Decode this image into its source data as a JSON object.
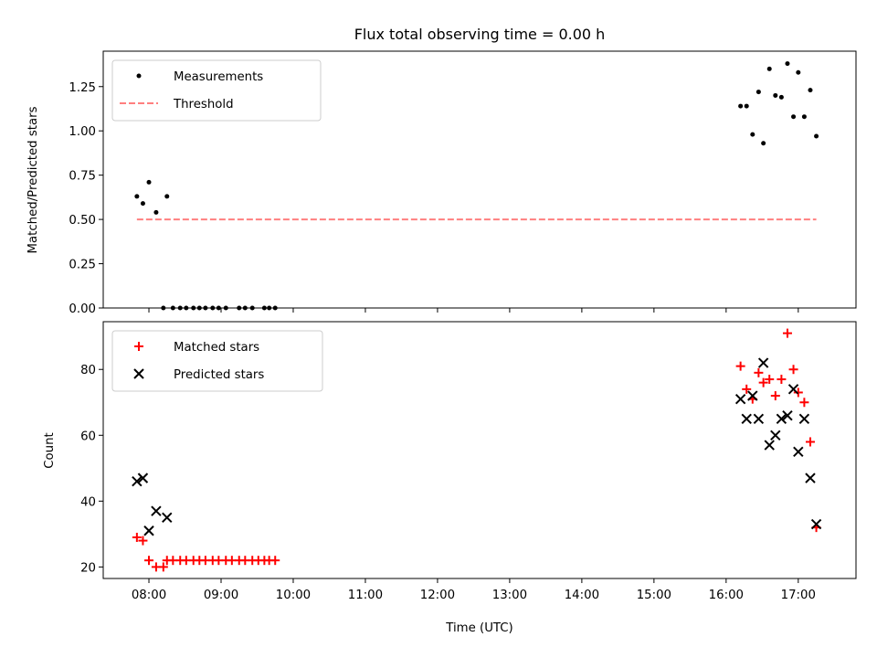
{
  "title": "Flux total observing time = 0.00 h",
  "xlabel": "Time (UTC)",
  "x_ticks": [
    "08:00",
    "09:00",
    "10:00",
    "11:00",
    "12:00",
    "13:00",
    "14:00",
    "15:00",
    "16:00",
    "17:00"
  ],
  "chart_data": [
    {
      "type": "scatter",
      "ylabel": "Matched/Predicted stars",
      "xlim": [
        "07:22",
        "17:48"
      ],
      "ylim": [
        0,
        1.45
      ],
      "y_ticks": [
        "0.00",
        "0.25",
        "0.50",
        "0.75",
        "1.00",
        "1.25"
      ],
      "legend": {
        "placement": "top-left",
        "entries": [
          "Measurements",
          "Threshold"
        ]
      },
      "series": [
        {
          "name": "Measurements",
          "marker": "dot",
          "color": "#000000",
          "points": [
            [
              "07:50",
              0.63
            ],
            [
              "07:55",
              0.59
            ],
            [
              "08:00",
              0.71
            ],
            [
              "08:06",
              0.54
            ],
            [
              "08:15",
              0.63
            ],
            [
              "08:12",
              0.0
            ],
            [
              "08:20",
              0.0
            ],
            [
              "08:26",
              0.0
            ],
            [
              "08:31",
              0.0
            ],
            [
              "08:37",
              0.0
            ],
            [
              "08:42",
              0.0
            ],
            [
              "08:47",
              0.0
            ],
            [
              "08:53",
              0.0
            ],
            [
              "08:58",
              0.0
            ],
            [
              "09:04",
              0.0
            ],
            [
              "09:15",
              0.0
            ],
            [
              "09:20",
              0.0
            ],
            [
              "09:26",
              0.0
            ],
            [
              "09:36",
              0.0
            ],
            [
              "09:40",
              0.0
            ],
            [
              "09:45",
              0.0
            ],
            [
              "16:12",
              1.14
            ],
            [
              "16:17",
              1.14
            ],
            [
              "16:22",
              0.98
            ],
            [
              "16:27",
              1.22
            ],
            [
              "16:31",
              0.93
            ],
            [
              "16:36",
              1.35
            ],
            [
              "16:41",
              1.2
            ],
            [
              "16:46",
              1.19
            ],
            [
              "16:51",
              1.38
            ],
            [
              "16:56",
              1.08
            ],
            [
              "17:00",
              1.33
            ],
            [
              "17:05",
              1.08
            ],
            [
              "17:10",
              1.23
            ],
            [
              "17:15",
              0.97
            ]
          ]
        },
        {
          "name": "Threshold",
          "style": "dashed",
          "color": "#ff7f7f",
          "points": [
            [
              "07:50",
              0.5
            ],
            [
              "17:15",
              0.5
            ]
          ]
        }
      ]
    },
    {
      "type": "scatter",
      "ylabel": "Count",
      "xlim": [
        "07:22",
        "17:48"
      ],
      "ylim": [
        16.5,
        94.5
      ],
      "y_ticks": [
        "20",
        "40",
        "60",
        "80"
      ],
      "legend": {
        "placement": "top-left",
        "entries": [
          "Matched stars",
          "Predicted stars"
        ]
      },
      "series": [
        {
          "name": "Matched stars",
          "marker": "plus",
          "color": "#ff0000",
          "points": [
            [
              "07:50",
              29
            ],
            [
              "07:55",
              28
            ],
            [
              "08:00",
              22
            ],
            [
              "08:06",
              20
            ],
            [
              "08:12",
              20
            ],
            [
              "08:15",
              22
            ],
            [
              "08:20",
              22
            ],
            [
              "08:26",
              22
            ],
            [
              "08:31",
              22
            ],
            [
              "08:37",
              22
            ],
            [
              "08:42",
              22
            ],
            [
              "08:47",
              22
            ],
            [
              "08:53",
              22
            ],
            [
              "08:58",
              22
            ],
            [
              "09:04",
              22
            ],
            [
              "09:09",
              22
            ],
            [
              "09:15",
              22
            ],
            [
              "09:20",
              22
            ],
            [
              "09:26",
              22
            ],
            [
              "09:31",
              22
            ],
            [
              "09:36",
              22
            ],
            [
              "09:40",
              22
            ],
            [
              "09:45",
              22
            ],
            [
              "16:12",
              81
            ],
            [
              "16:17",
              74
            ],
            [
              "16:22",
              71
            ],
            [
              "16:27",
              79
            ],
            [
              "16:31",
              76
            ],
            [
              "16:36",
              77
            ],
            [
              "16:41",
              72
            ],
            [
              "16:46",
              77
            ],
            [
              "16:51",
              91
            ],
            [
              "16:56",
              80
            ],
            [
              "17:00",
              73
            ],
            [
              "17:05",
              70
            ],
            [
              "17:10",
              58
            ],
            [
              "17:15",
              32
            ]
          ]
        },
        {
          "name": "Predicted stars",
          "marker": "x",
          "color": "#000000",
          "points": [
            [
              "07:50",
              46
            ],
            [
              "07:55",
              47
            ],
            [
              "08:00",
              31
            ],
            [
              "08:06",
              37
            ],
            [
              "08:15",
              35
            ],
            [
              "16:12",
              71
            ],
            [
              "16:17",
              65
            ],
            [
              "16:22",
              72
            ],
            [
              "16:27",
              65
            ],
            [
              "16:31",
              82
            ],
            [
              "16:36",
              57
            ],
            [
              "16:41",
              60
            ],
            [
              "16:46",
              65
            ],
            [
              "16:51",
              66
            ],
            [
              "16:56",
              74
            ],
            [
              "17:00",
              55
            ],
            [
              "17:05",
              65
            ],
            [
              "17:10",
              47
            ],
            [
              "17:15",
              33
            ]
          ]
        }
      ]
    }
  ]
}
